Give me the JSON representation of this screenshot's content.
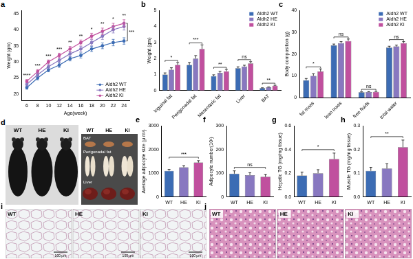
{
  "chart_data": [
    {
      "panel": "a",
      "type": "line",
      "x_label": "Age(week)",
      "y_label": "Weight (gm)",
      "x": [
        6,
        8,
        10,
        12,
        14,
        16,
        18,
        20,
        22,
        24
      ],
      "xlim": [
        5,
        25
      ],
      "xticks": [
        6,
        8,
        10,
        12,
        14,
        16,
        18,
        20,
        22,
        24
      ],
      "ylim": [
        18,
        46
      ],
      "yticks": [
        20,
        25,
        30,
        35,
        40,
        45
      ],
      "grid": false,
      "legend": "lower right",
      "marker": "circle",
      "line_style": "solid",
      "series": [
        {
          "name": "Aldh2 WT",
          "color": "#3c6cb4",
          "values": [
            22,
            25,
            27.5,
            29,
            31,
            32,
            34,
            35,
            36,
            36.5
          ],
          "errors": [
            0.5,
            0.6,
            0.6,
            0.7,
            0.7,
            0.8,
            0.8,
            0.9,
            1.0,
            1.0
          ]
        },
        {
          "name": "Aldh2 HE",
          "color": "#8878c0",
          "values": [
            23,
            26,
            28.5,
            30.5,
            32.5,
            34,
            36,
            38,
            40,
            41
          ],
          "errors": [
            0.5,
            0.6,
            0.7,
            0.7,
            0.8,
            0.8,
            0.9,
            1.0,
            1.0,
            1.1
          ]
        },
        {
          "name": "Aldh2 KI",
          "color": "#c0509e",
          "values": [
            24,
            27,
            30,
            32,
            34,
            36,
            38,
            39.5,
            41,
            42
          ],
          "errors": [
            0.5,
            0.6,
            0.6,
            0.7,
            0.8,
            0.8,
            0.9,
            1.0,
            1.0,
            1.1
          ]
        }
      ],
      "annotations": [
        "****",
        "***",
        "***",
        "***",
        "**",
        "**",
        "*",
        "**",
        "*",
        "**"
      ],
      "overall_annotation": "***"
    },
    {
      "panel": "b",
      "type": "bar",
      "y_label": "Weight (gm)",
      "categories": [
        "Inguinal fat",
        "Perigonadal fat",
        "Mesenteric fat",
        "Liver",
        "BAT"
      ],
      "ylim": [
        0,
        5
      ],
      "yticks": [
        0,
        1,
        2,
        3,
        4,
        5
      ],
      "grid": false,
      "legend": "upper right",
      "series": [
        {
          "name": "Aldh2 WT",
          "color": "#3c6cb4",
          "values": [
            1.0,
            1.6,
            0.9,
            1.4,
            0.15
          ],
          "errors": [
            0.1,
            0.15,
            0.08,
            0.08,
            0.02
          ]
        },
        {
          "name": "Aldh2 HE",
          "color": "#8878c0",
          "values": [
            1.3,
            2.0,
            1.1,
            1.5,
            0.2
          ],
          "errors": [
            0.12,
            0.18,
            0.1,
            0.08,
            0.02
          ]
        },
        {
          "name": "Aldh2 KI",
          "color": "#c0509e",
          "values": [
            1.6,
            2.6,
            1.2,
            1.7,
            0.3
          ],
          "errors": [
            0.15,
            0.25,
            0.12,
            0.1,
            0.03
          ]
        }
      ],
      "annotations": [
        "*",
        "***",
        "**",
        "ns",
        "**"
      ]
    },
    {
      "panel": "c",
      "type": "bar",
      "y_label": "Body composition (g)",
      "categories": [
        "fat mass",
        "lean mass",
        "free fluids",
        "total water"
      ],
      "ylim": [
        0,
        40
      ],
      "yticks": [
        0,
        10,
        20,
        30,
        40
      ],
      "grid": false,
      "legend": "upper right",
      "series": [
        {
          "name": "Aldh2 WT",
          "color": "#3c6cb4",
          "values": [
            8,
            24,
            2.5,
            23
          ],
          "errors": [
            0.8,
            0.6,
            0.2,
            0.6
          ]
        },
        {
          "name": "Aldh2 HE",
          "color": "#8878c0",
          "values": [
            10,
            25,
            2.6,
            23.5
          ],
          "errors": [
            1.0,
            0.7,
            0.2,
            0.6
          ]
        },
        {
          "name": "Aldh2 KI",
          "color": "#c0509e",
          "values": [
            12,
            26,
            2.7,
            25
          ],
          "errors": [
            1.2,
            0.9,
            0.2,
            0.7
          ]
        }
      ],
      "annotations": [
        "*",
        "ns",
        "ns",
        "ns"
      ]
    },
    {
      "panel": "e",
      "type": "bar",
      "y_label": "Average adipocyte size (μ m²)",
      "categories": [
        "WT",
        "HE",
        "KI"
      ],
      "values": [
        1100,
        1250,
        1450
      ],
      "errors": [
        60,
        70,
        80
      ],
      "colors": [
        "#3c6cb4",
        "#8878c0",
        "#c0509e"
      ],
      "ylim": [
        0,
        3000
      ],
      "yticks": [
        0,
        1000,
        2000,
        3000
      ],
      "grid": false,
      "annotation": "***"
    },
    {
      "panel": "f",
      "type": "bar",
      "y_label": "Adipocyte number(10³)",
      "categories": [
        "WT",
        "HE",
        "KI"
      ],
      "values": [
        98,
        92,
        85
      ],
      "errors": [
        12,
        10,
        10
      ],
      "colors": [
        "#3c6cb4",
        "#8878c0",
        "#c0509e"
      ],
      "ylim": [
        0,
        300
      ],
      "yticks": [
        0,
        100,
        200,
        300
      ],
      "grid": false,
      "annotation": "ns"
    },
    {
      "panel": "g",
      "type": "bar",
      "y_label": "Hepatic TG (mg/mg tissue)",
      "categories": [
        "WT",
        "HE",
        "KI"
      ],
      "values": [
        0.18,
        0.2,
        0.32
      ],
      "errors": [
        0.03,
        0.03,
        0.05
      ],
      "colors": [
        "#3c6cb4",
        "#8878c0",
        "#c0509e"
      ],
      "ylim": [
        0,
        0.6
      ],
      "yticks": [
        {
          "value": 0,
          "label": "0.0"
        },
        0.2,
        0.4,
        0.6
      ],
      "grid": false,
      "annotation": "*"
    },
    {
      "panel": "h",
      "type": "bar",
      "y_label": "Muscle TG (mg/mg tissue)",
      "categories": [
        "WT",
        "HE",
        "KI"
      ],
      "values": [
        0.11,
        0.12,
        0.21
      ],
      "errors": [
        0.015,
        0.02,
        0.03
      ],
      "colors": [
        "#3c6cb4",
        "#8878c0",
        "#c0509e"
      ],
      "ylim": [
        0,
        0.3
      ],
      "yticks": [
        {
          "value": 0,
          "label": "0.0"
        },
        0.1,
        0.2,
        0.3
      ],
      "grid": false,
      "annotation": "**"
    }
  ],
  "figure_images": [
    {
      "panel": "d",
      "labels": [
        "WT",
        "HE",
        "KI"
      ],
      "organ_labels": [
        "WT",
        "HE",
        "KI"
      ],
      "organs": [
        "BAT",
        "Perigonadal fat",
        "Liver"
      ]
    },
    {
      "panel": "i",
      "labels": [
        "WT",
        "HE",
        "KI"
      ],
      "scale_bar": "100 μm"
    },
    {
      "panel": "j",
      "labels": [
        "WT",
        "HE",
        "KI"
      ]
    }
  ]
}
